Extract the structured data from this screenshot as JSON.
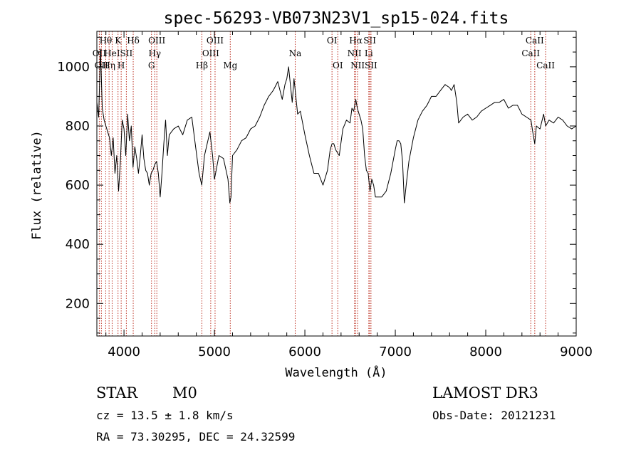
{
  "chart_data": {
    "type": "line",
    "title": "spec-56293-VB073N23V1_sp15-024.fits",
    "xlabel": "Wavelength (Å)",
    "ylabel": "Flux (relative)",
    "xlim": [
      3700,
      9000
    ],
    "ylim": [
      90,
      1120
    ],
    "xticks": [
      4000,
      5000,
      6000,
      7000,
      8000,
      9000
    ],
    "yticks": [
      200,
      400,
      600,
      800,
      1000
    ],
    "grid": false,
    "legend": "none",
    "series": [
      {
        "color": "#000000",
        "x": [
          3700,
          3720,
          3740,
          3760,
          3780,
          3800,
          3820,
          3840,
          3860,
          3880,
          3900,
          3920,
          3940,
          3960,
          3980,
          4000,
          4020,
          4040,
          4060,
          4080,
          4100,
          4120,
          4140,
          4160,
          4180,
          4200,
          4220,
          4240,
          4260,
          4280,
          4300,
          4320,
          4340,
          4360,
          4380,
          4400,
          4420,
          4440,
          4460,
          4480,
          4500,
          4550,
          4600,
          4650,
          4700,
          4750,
          4800,
          4830,
          4860,
          4890,
          4920,
          4950,
          4980,
          5000,
          5050,
          5100,
          5150,
          5170,
          5183,
          5200,
          5250,
          5300,
          5350,
          5400,
          5450,
          5500,
          5550,
          5600,
          5650,
          5700,
          5750,
          5780,
          5800,
          5820,
          5840,
          5860,
          5880,
          5893,
          5920,
          5950,
          6000,
          6050,
          6100,
          6150,
          6200,
          6250,
          6280,
          6300,
          6320,
          6340,
          6380,
          6420,
          6460,
          6500,
          6520,
          6540,
          6563,
          6580,
          6600,
          6620,
          6640,
          6660,
          6680,
          6700,
          6720,
          6740,
          6760,
          6780,
          6800,
          6850,
          6900,
          6950,
          7000,
          7020,
          7040,
          7060,
          7080,
          7100,
          7120,
          7150,
          7200,
          7250,
          7300,
          7350,
          7400,
          7450,
          7500,
          7550,
          7600,
          7620,
          7650,
          7680,
          7700,
          7750,
          7800,
          7850,
          7900,
          7950,
          8000,
          8050,
          8100,
          8150,
          8200,
          8250,
          8300,
          8350,
          8400,
          8450,
          8500,
          8520,
          8542,
          8560,
          8600,
          8640,
          8662,
          8700,
          8750,
          8800,
          8850,
          8900,
          8950,
          9000
        ],
        "y": [
          880,
          830,
          1060,
          860,
          820,
          800,
          780,
          760,
          700,
          760,
          640,
          700,
          580,
          680,
          820,
          790,
          700,
          840,
          750,
          800,
          660,
          730,
          690,
          640,
          700,
          770,
          690,
          650,
          640,
          600,
          640,
          650,
          670,
          680,
          640,
          560,
          640,
          740,
          820,
          700,
          770,
          790,
          800,
          770,
          820,
          830,
          710,
          640,
          600,
          700,
          740,
          780,
          700,
          620,
          700,
          690,
          620,
          540,
          560,
          700,
          720,
          750,
          760,
          790,
          800,
          830,
          870,
          900,
          920,
          950,
          890,
          940,
          960,
          1000,
          940,
          880,
          960,
          920,
          840,
          850,
          770,
          700,
          640,
          640,
          600,
          650,
          720,
          740,
          740,
          720,
          700,
          790,
          820,
          810,
          860,
          850,
          890,
          860,
          840,
          820,
          790,
          700,
          650,
          640,
          580,
          620,
          600,
          560,
          560,
          560,
          580,
          640,
          720,
          750,
          750,
          740,
          680,
          540,
          600,
          680,
          760,
          820,
          850,
          870,
          900,
          900,
          920,
          940,
          930,
          920,
          940,
          880,
          810,
          830,
          840,
          820,
          830,
          850,
          860,
          870,
          880,
          880,
          890,
          860,
          870,
          870,
          840,
          830,
          820,
          780,
          740,
          800,
          790,
          840,
          800,
          820,
          810,
          830,
          820,
          800,
          790,
          800
        ]
      }
    ],
    "line_markers": [
      {
        "x": 3727,
        "label": "OII",
        "row": 1
      },
      {
        "x": 3750,
        "label": "OII",
        "row": 2
      },
      {
        "x": 3798,
        "label": "Hθ",
        "row": 0
      },
      {
        "x": 3835,
        "label": "Hη",
        "row": 2
      },
      {
        "x": 3869,
        "label": "HeI",
        "row": 1
      },
      {
        "x": 3934,
        "label": "K",
        "row": 0
      },
      {
        "x": 3969,
        "label": "H",
        "row": 2
      },
      {
        "x": 4026,
        "label": "SII",
        "row": 1
      },
      {
        "x": 4102,
        "label": "Hδ",
        "row": 0
      },
      {
        "x": 4304,
        "label": "G",
        "row": 2
      },
      {
        "x": 4340,
        "label": "Hγ",
        "row": 1
      },
      {
        "x": 4363,
        "label": "OIII",
        "row": 0
      },
      {
        "x": 4861,
        "label": "Hβ",
        "row": 2
      },
      {
        "x": 4959,
        "label": "OIII",
        "row": 1
      },
      {
        "x": 5007,
        "label": "OIII",
        "row": 0
      },
      {
        "x": 5175,
        "label": "Mg",
        "row": 2
      },
      {
        "x": 5893,
        "label": "Na",
        "row": 1
      },
      {
        "x": 6300,
        "label": "OI",
        "row": 0
      },
      {
        "x": 6364,
        "label": "OI",
        "row": 2
      },
      {
        "x": 6548,
        "label": "NII",
        "row": 1
      },
      {
        "x": 6563,
        "label": "Hα",
        "row": 0
      },
      {
        "x": 6583,
        "label": "NII",
        "row": 2
      },
      {
        "x": 6707,
        "label": "Li",
        "row": 1
      },
      {
        "x": 6717,
        "label": "SII",
        "row": 0
      },
      {
        "x": 6731,
        "label": "SII",
        "row": 2
      },
      {
        "x": 8498,
        "label": "CaII",
        "row": 1
      },
      {
        "x": 8542,
        "label": "CaII",
        "row": 0
      },
      {
        "x": 8662,
        "label": "CaII",
        "row": 2
      }
    ]
  },
  "footer": {
    "obj_class": "STAR",
    "subclass": "M0",
    "survey": "LAMOST DR3",
    "cz_text": "cz = 13.5 ± 1.8 km/s",
    "obs_date_text": "Obs-Date: 20121231",
    "coords_text": "RA =  73.30295, DEC =  24.32599"
  },
  "colors": {
    "spectrum": "#000000",
    "marker_line": "#c0392b"
  }
}
